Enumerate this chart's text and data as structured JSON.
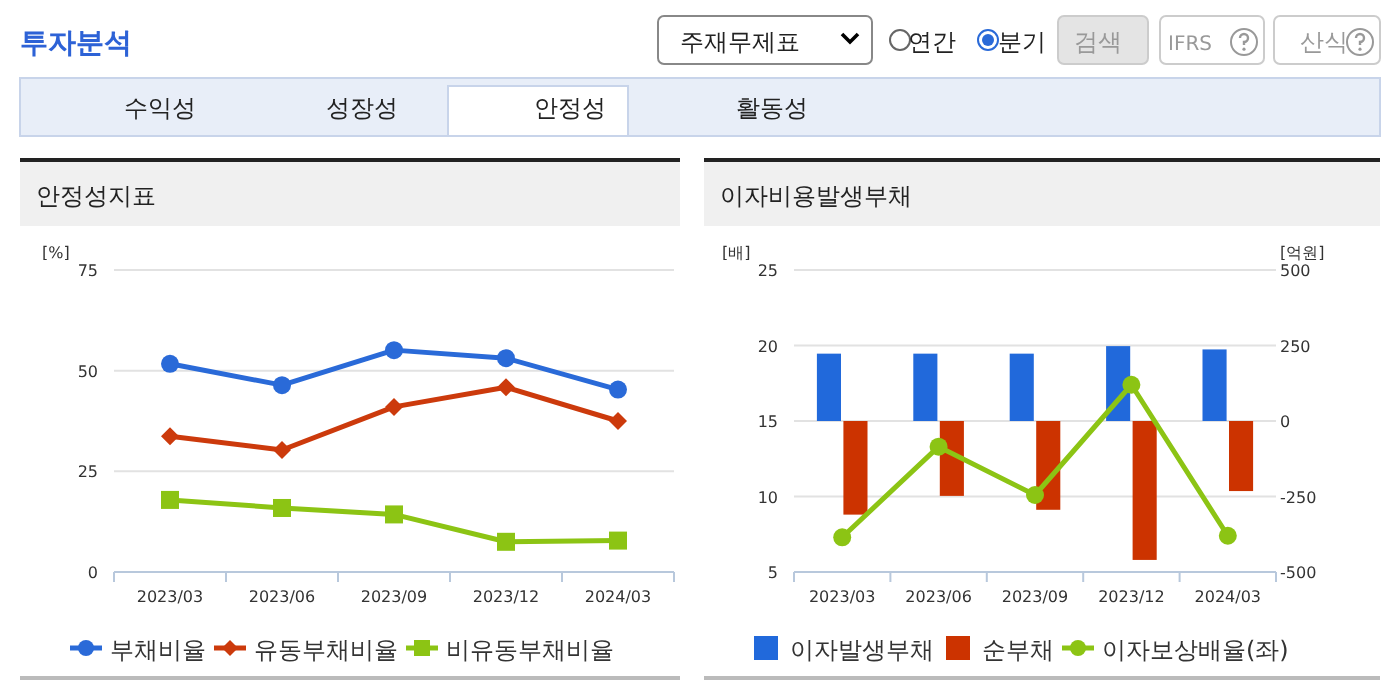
{
  "chart_data": [
    {
      "type": "other",
      "title": "투자분석",
      "annotations": [
        "주재무제표",
        "연간",
        "분기",
        "검색",
        "IFRS",
        "산식",
        "수익성",
        "성장성",
        "안정성",
        "활동성"
      ]
    },
    {
      "type": "line",
      "title": "안정성지표",
      "ylabel": "[%]",
      "categories": [
        "2023/03",
        "2023/06",
        "2023/09",
        "2023/12",
        "2024/03"
      ],
      "ylim": [
        0,
        75
      ],
      "yticks": [
        0,
        25,
        50,
        75
      ],
      "grid": "y",
      "legend": "bottom",
      "line_style": "solid",
      "series": [
        {
          "name": "부채비율",
          "color": "#2a6ad8",
          "marker": "circle",
          "values": [
            51.7,
            46.4,
            55.1,
            53.1,
            45.3
          ]
        },
        {
          "name": "유동부채비율",
          "color": "#cc3a0c",
          "marker": "diamond",
          "values": [
            33.7,
            30.3,
            41.0,
            45.9,
            37.5
          ]
        },
        {
          "name": "비유동부채비율",
          "color": "#8cc414",
          "marker": "square",
          "values": [
            17.9,
            15.9,
            14.3,
            7.5,
            7.8
          ]
        }
      ]
    },
    {
      "type": "bar",
      "title": "이자비용발생부채",
      "ylabel": "[배]",
      "y2label": "[억원]",
      "categories": [
        "2023/03",
        "2023/06",
        "2023/09",
        "2023/12",
        "2024/03"
      ],
      "ylim": [
        5,
        25
      ],
      "yticks": [
        5,
        10,
        15,
        20,
        25
      ],
      "y2lim": [
        -500,
        500
      ],
      "y2ticks": [
        -500,
        -250,
        0,
        250,
        500
      ],
      "grid": "y",
      "legend": "bottom",
      "series": [
        {
          "name": "이자발생부채",
          "color": "#2169db",
          "axis": "y2",
          "values": [
            223,
            223,
            223,
            248,
            237
          ]
        },
        {
          "name": "순부채",
          "color": "#cc3300",
          "axis": "y2",
          "values": [
            -310,
            -248,
            -294,
            -460,
            -232
          ]
        },
        {
          "name": "이자보상배율(좌)",
          "type": "line",
          "color": "#8cc414",
          "marker": "circle",
          "axis": "y",
          "values": [
            7.3,
            13.3,
            10.1,
            17.4,
            7.4
          ]
        }
      ]
    }
  ]
}
